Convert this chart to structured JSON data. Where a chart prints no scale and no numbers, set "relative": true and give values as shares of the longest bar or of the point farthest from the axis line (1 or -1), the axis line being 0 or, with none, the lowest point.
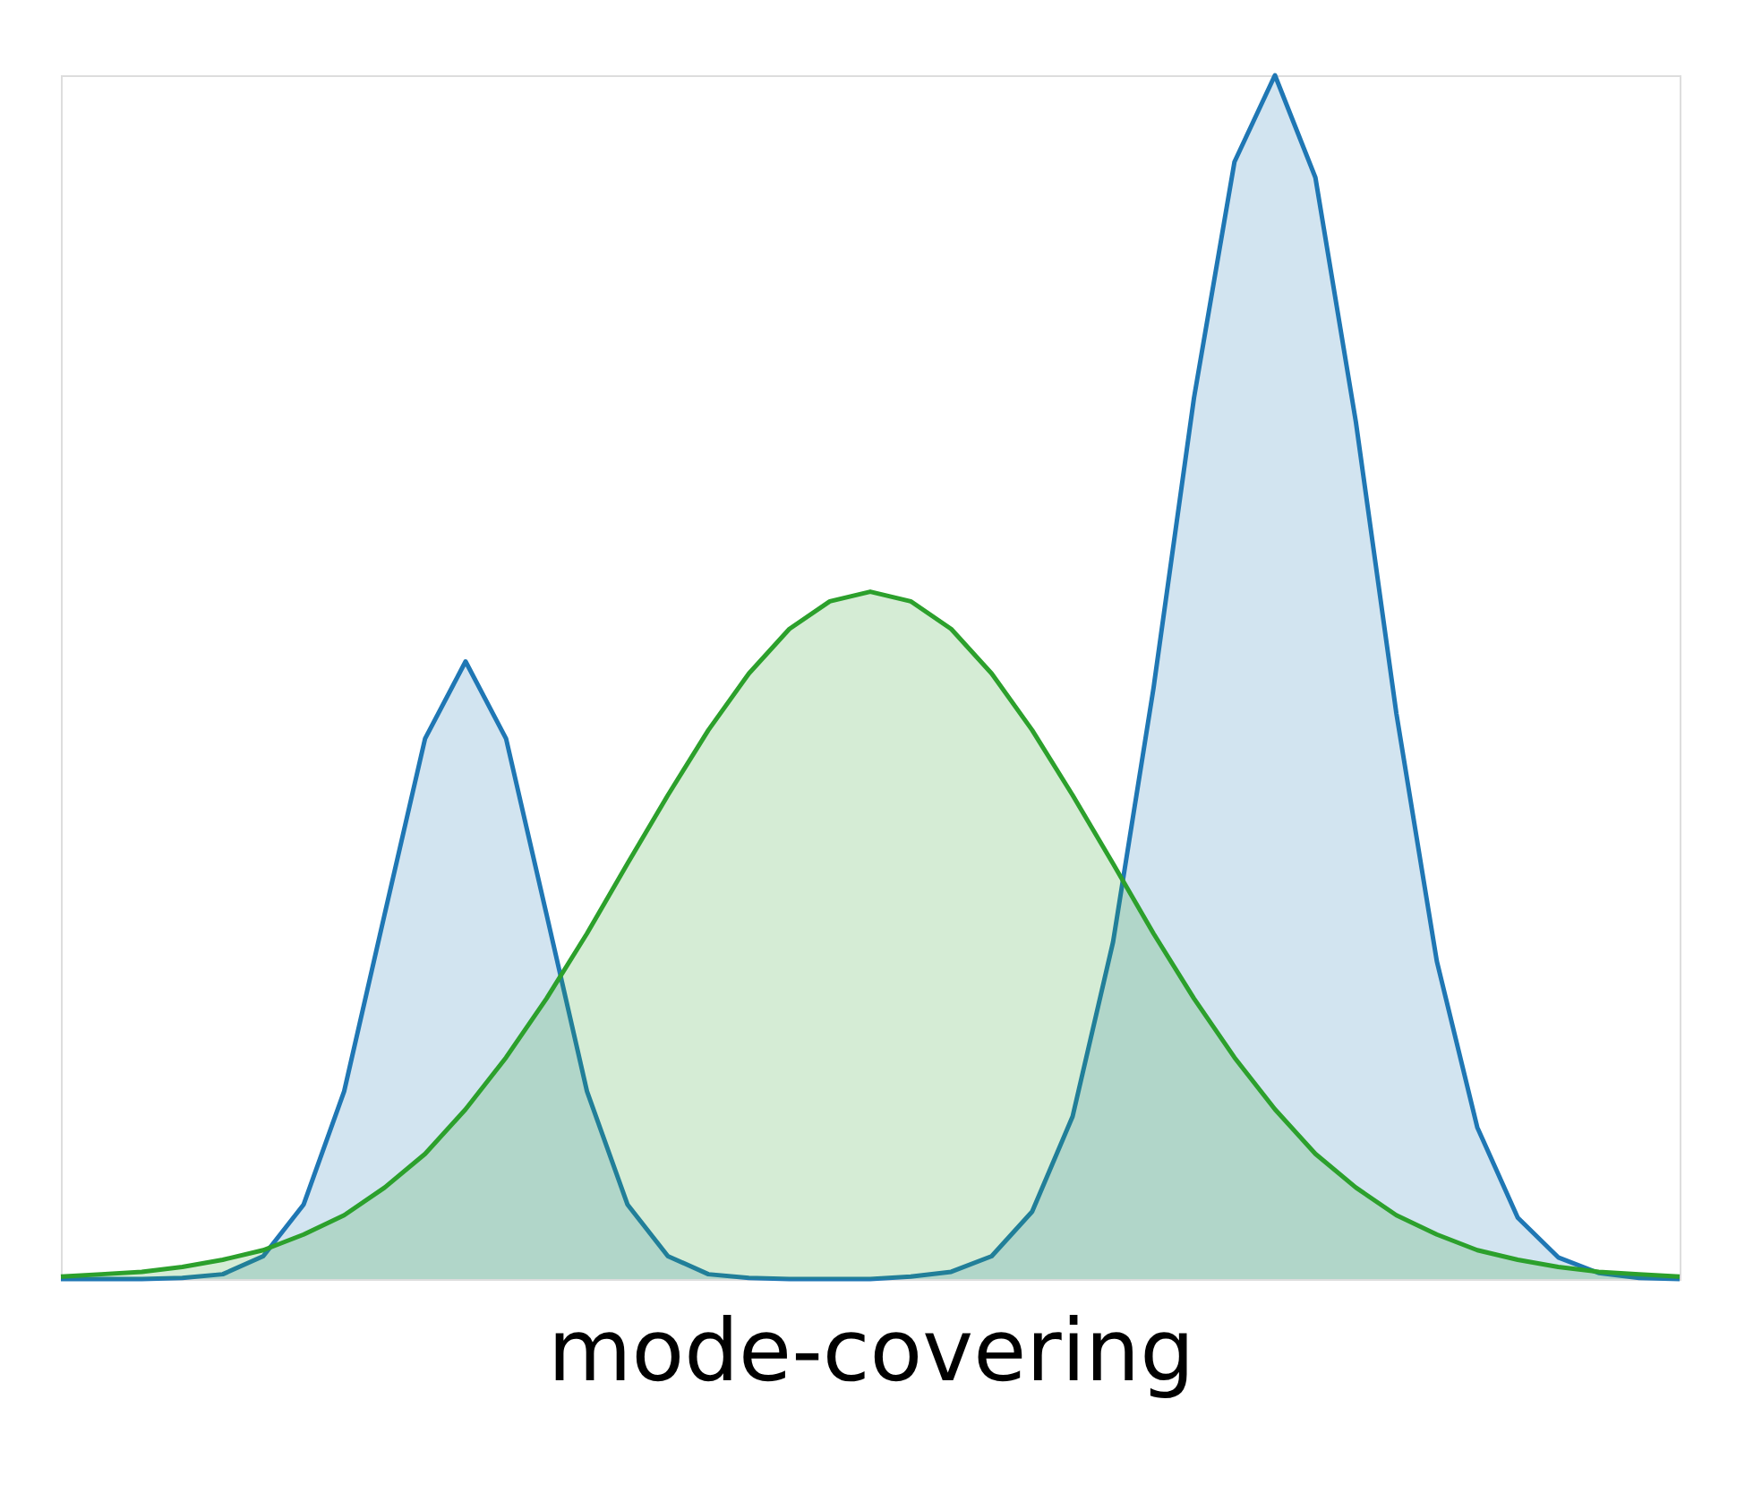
{
  "chart_data": {
    "type": "area",
    "xlabel": "mode-covering",
    "relative": true,
    "categories": [
      null,
      null,
      null,
      null,
      null,
      null,
      null,
      null,
      null,
      null,
      null,
      null,
      null,
      null,
      null,
      null,
      null,
      null,
      null,
      null,
      null,
      null,
      null,
      null,
      null,
      null,
      null,
      null,
      null,
      null,
      null,
      null,
      null,
      null,
      null,
      null,
      null,
      null,
      null,
      null,
      null
    ],
    "series": [
      {
        "color": "#1f77b4",
        "values": [
          0,
          0,
          0,
          0.001,
          0.004,
          0.019,
          0.062,
          0.156,
          0.303,
          0.449,
          0.513,
          0.449,
          0.303,
          0.156,
          0.062,
          0.019,
          0.004,
          0.001,
          0,
          0,
          0,
          0.002,
          0.006,
          0.019,
          0.056,
          0.135,
          0.28,
          0.491,
          0.732,
          0.928,
          1.0,
          0.915,
          0.712,
          0.47,
          0.264,
          0.126,
          0.051,
          0.018,
          0.005,
          0.001,
          0
        ]
      },
      {
        "color": "#2ca02c",
        "values": [
          0.002,
          0.004,
          0.006,
          0.01,
          0.016,
          0.024,
          0.037,
          0.053,
          0.076,
          0.104,
          0.141,
          0.184,
          0.233,
          0.287,
          0.345,
          0.402,
          0.456,
          0.503,
          0.54,
          0.563,
          0.571,
          0.563,
          0.54,
          0.503,
          0.456,
          0.402,
          0.345,
          0.287,
          0.233,
          0.184,
          0.141,
          0.104,
          0.076,
          0.053,
          0.037,
          0.024,
          0.016,
          0.01,
          0.006,
          0.004,
          0.002
        ]
      }
    ]
  }
}
